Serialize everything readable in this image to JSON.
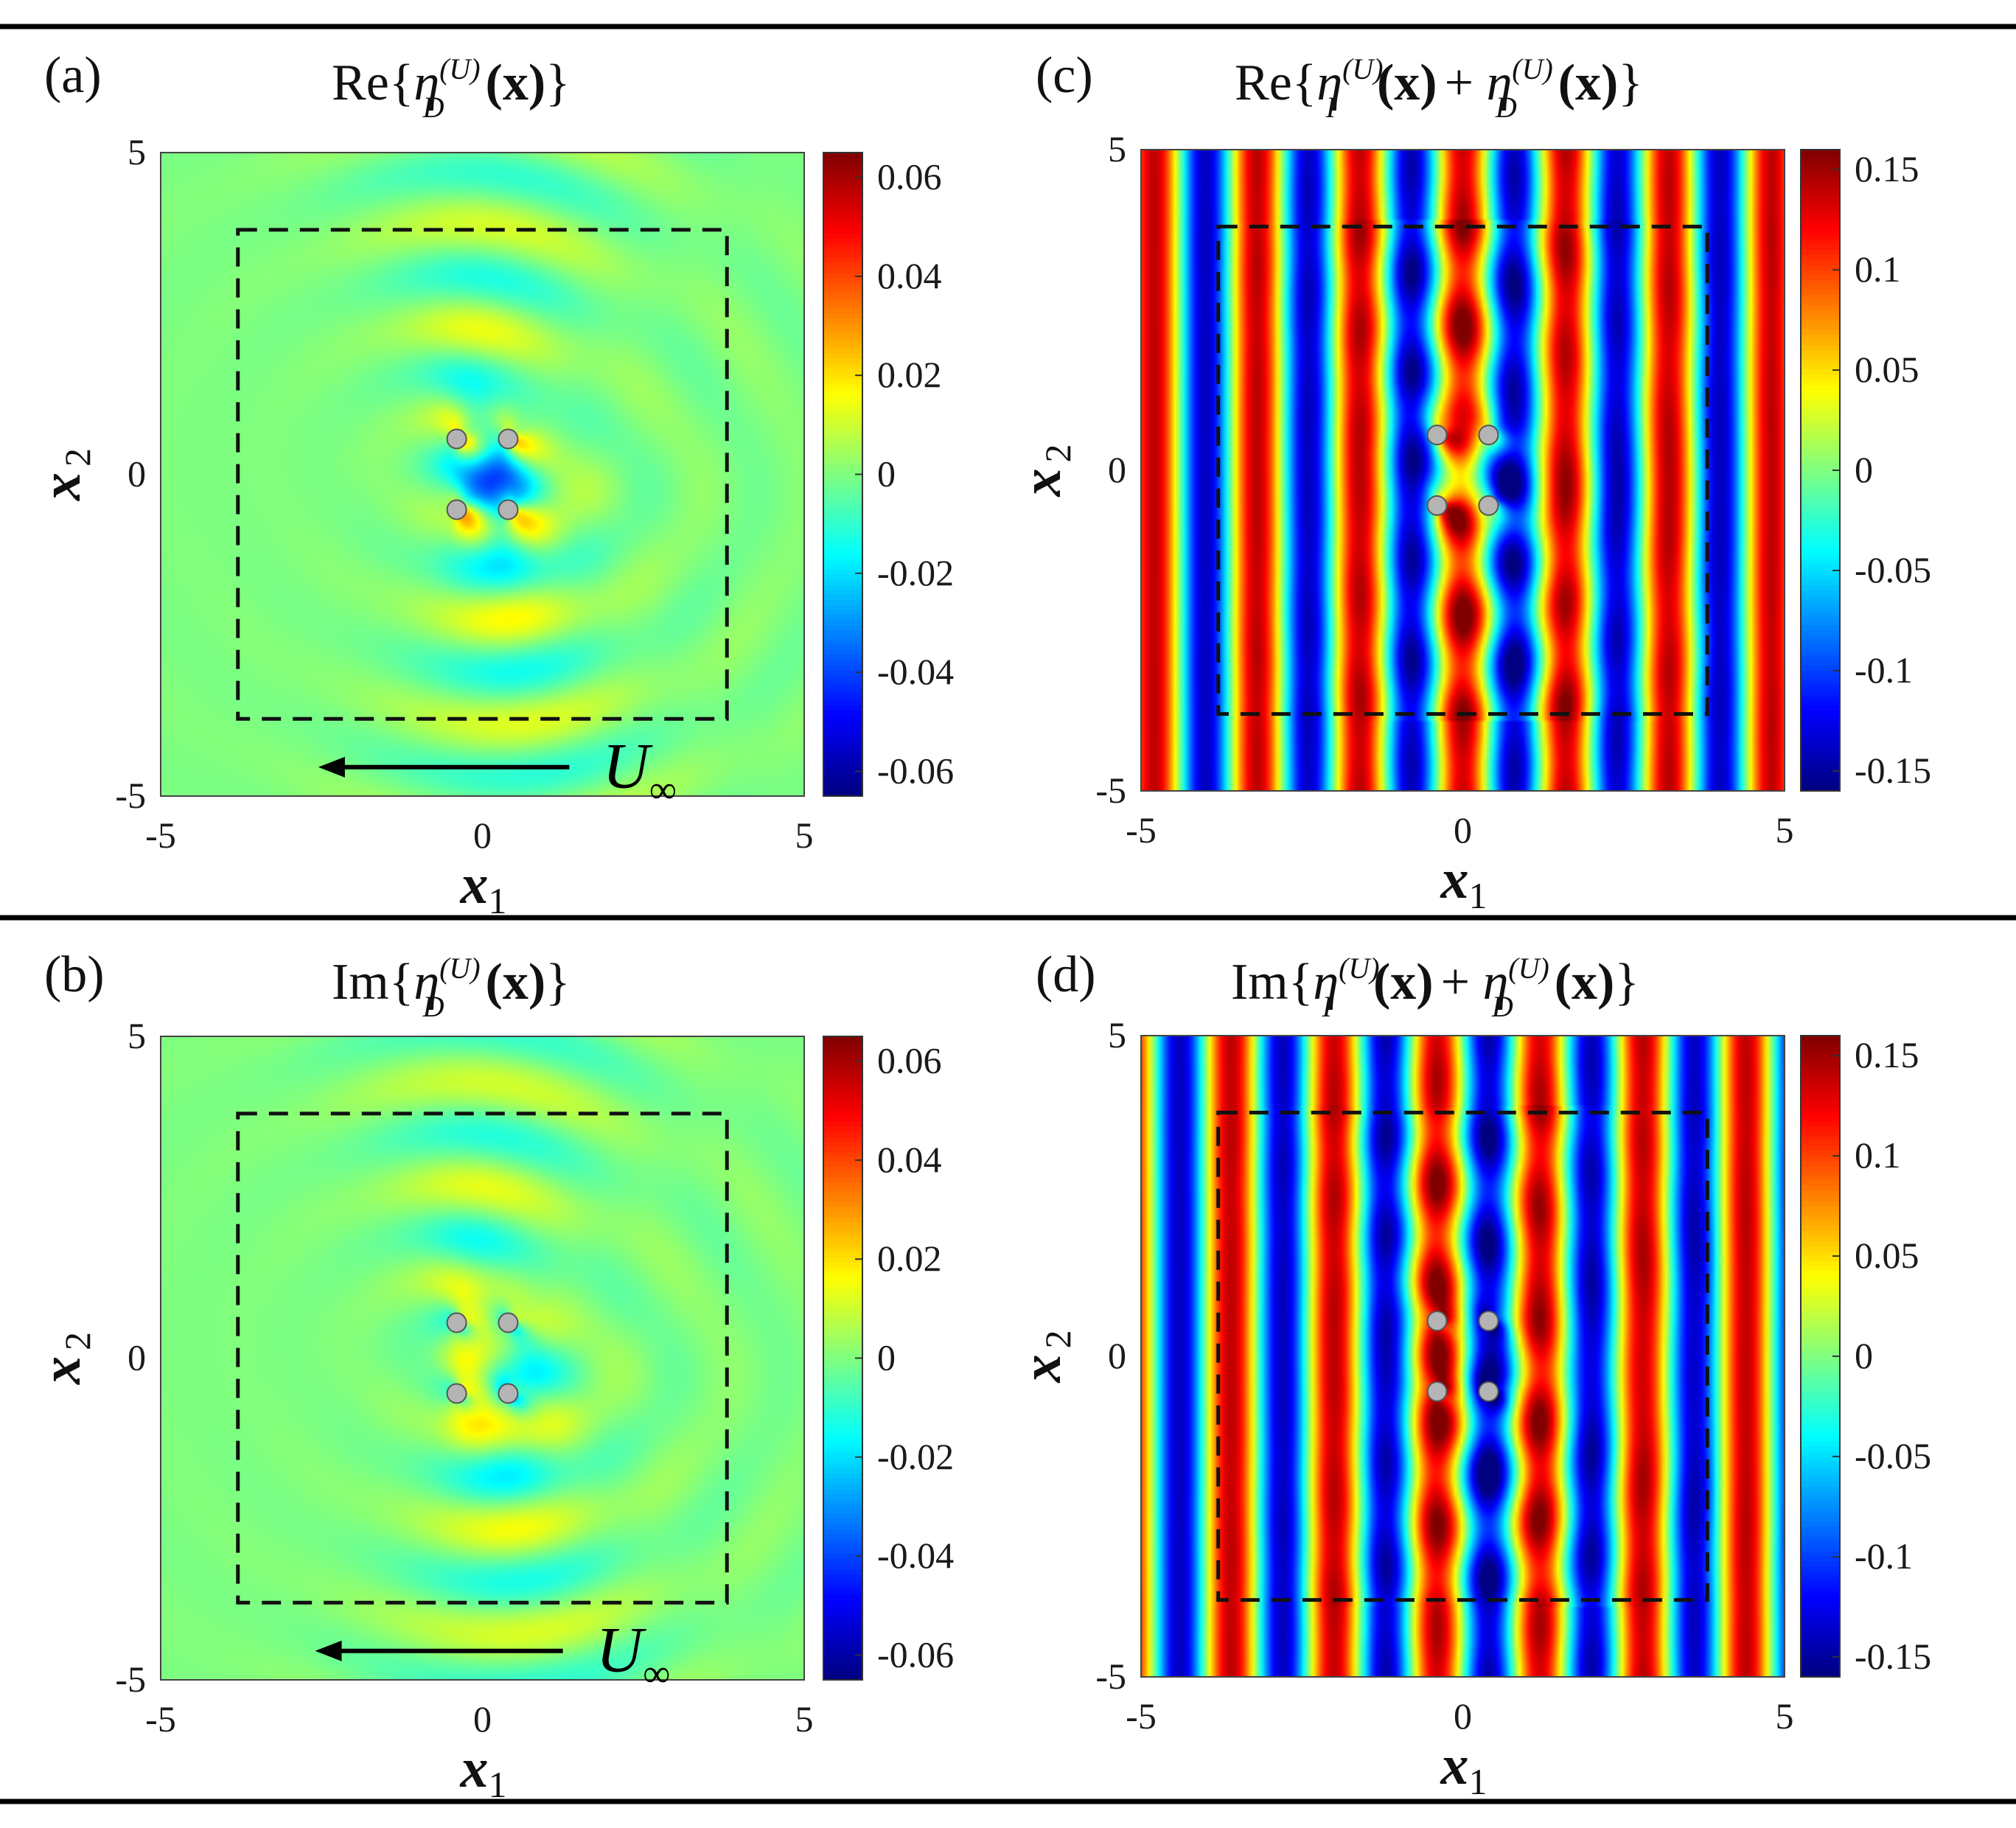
{
  "figure": {
    "separator_color": "#000000"
  },
  "chart_data": [
    {
      "id": "a",
      "type": "heatmap",
      "panel_label": "(a)",
      "title_prefix": "Re",
      "title_terms": [
        "η_D^(U)(x)"
      ],
      "xlabel": "x 1",
      "ylabel": "x 2",
      "xlim": [
        -5,
        5
      ],
      "ylim": [
        -5,
        5
      ],
      "x_ticks": [
        "-5",
        "0",
        "5"
      ],
      "y_ticks": [
        "5",
        "0",
        "-5"
      ],
      "colorbar_range": [
        -0.065,
        0.065
      ],
      "colorbar_ticks": [
        "0.06",
        "0.04",
        "0.02",
        "0",
        "-0.02",
        "-0.04",
        "-0.06"
      ],
      "field": "diffracted",
      "part": "real",
      "dashed_box": [
        -3.8,
        3.8,
        -3.8,
        3.8
      ],
      "markers": [
        [
          -0.4,
          0.55
        ],
        [
          0.4,
          0.55
        ],
        [
          -0.4,
          -0.55
        ],
        [
          0.4,
          -0.55
        ]
      ],
      "flow_label_main": "U",
      "flow_label_sub": "∞",
      "flow_arrow": {
        "from": [
          1.35,
          -4.55
        ],
        "to": [
          -2.55,
          -4.55
        ]
      }
    },
    {
      "id": "b",
      "type": "heatmap",
      "panel_label": "(b)",
      "title_prefix": "Im",
      "title_terms": [
        "η_D^(U)(x)"
      ],
      "xlabel": "x 1",
      "ylabel": "x 2",
      "xlim": [
        -5,
        5
      ],
      "ylim": [
        -5,
        5
      ],
      "x_ticks": [
        "-5",
        "0",
        "5"
      ],
      "y_ticks": [
        "5",
        "0",
        "-5"
      ],
      "colorbar_range": [
        -0.065,
        0.065
      ],
      "colorbar_ticks": [
        "0.06",
        "0.04",
        "0.02",
        "0",
        "-0.02",
        "-0.04",
        "-0.06"
      ],
      "field": "diffracted",
      "part": "imag",
      "dashed_box": [
        -3.8,
        3.8,
        -3.8,
        3.8
      ],
      "markers": [
        [
          -0.4,
          0.55
        ],
        [
          0.4,
          0.55
        ],
        [
          -0.4,
          -0.55
        ],
        [
          0.4,
          -0.55
        ]
      ],
      "flow_label_main": "U",
      "flow_label_sub": "∞",
      "flow_arrow": {
        "from": [
          1.25,
          -4.55
        ],
        "to": [
          -2.6,
          -4.55
        ]
      }
    },
    {
      "id": "c",
      "type": "heatmap",
      "panel_label": "(c)",
      "title_prefix": "Re",
      "title_terms": [
        "η_I^(U)(x)",
        "η_D^(U)(x)"
      ],
      "xlabel": "x 1",
      "ylabel": "x 2",
      "xlim": [
        -5,
        5
      ],
      "ylim": [
        -5,
        5
      ],
      "x_ticks": [
        "-5",
        "0",
        "5"
      ],
      "y_ticks": [
        "5",
        "0",
        "-5"
      ],
      "colorbar_range": [
        -0.16,
        0.16
      ],
      "colorbar_ticks": [
        "0.15",
        "0.1",
        "0.05",
        "0",
        "-0.05",
        "-0.1",
        "-0.15"
      ],
      "field": "total",
      "part": "real",
      "dashed_box": [
        -3.8,
        3.8,
        -3.8,
        3.8
      ],
      "markers": [
        [
          -0.4,
          0.55
        ],
        [
          0.4,
          0.55
        ],
        [
          -0.4,
          -0.55
        ],
        [
          0.4,
          -0.55
        ]
      ]
    },
    {
      "id": "d",
      "type": "heatmap",
      "panel_label": "(d)",
      "title_prefix": "Im",
      "title_terms": [
        "η_I^(U)(x)",
        "η_D^(U)(x)"
      ],
      "xlabel": "x 1",
      "ylabel": "x 2",
      "xlim": [
        -5,
        5
      ],
      "ylim": [
        -5,
        5
      ],
      "x_ticks": [
        "-5",
        "0",
        "5"
      ],
      "y_ticks": [
        "5",
        "0",
        "-5"
      ],
      "colorbar_range": [
        -0.16,
        0.16
      ],
      "colorbar_ticks": [
        "0.15",
        "0.1",
        "0.05",
        "0",
        "-0.05",
        "-0.1",
        "-0.15"
      ],
      "field": "total",
      "part": "imag",
      "dashed_box": [
        -3.8,
        3.8,
        -3.8,
        3.8
      ],
      "markers": [
        [
          -0.4,
          0.55
        ],
        [
          0.4,
          0.55
        ],
        [
          -0.4,
          -0.55
        ],
        [
          0.4,
          -0.55
        ]
      ]
    }
  ]
}
